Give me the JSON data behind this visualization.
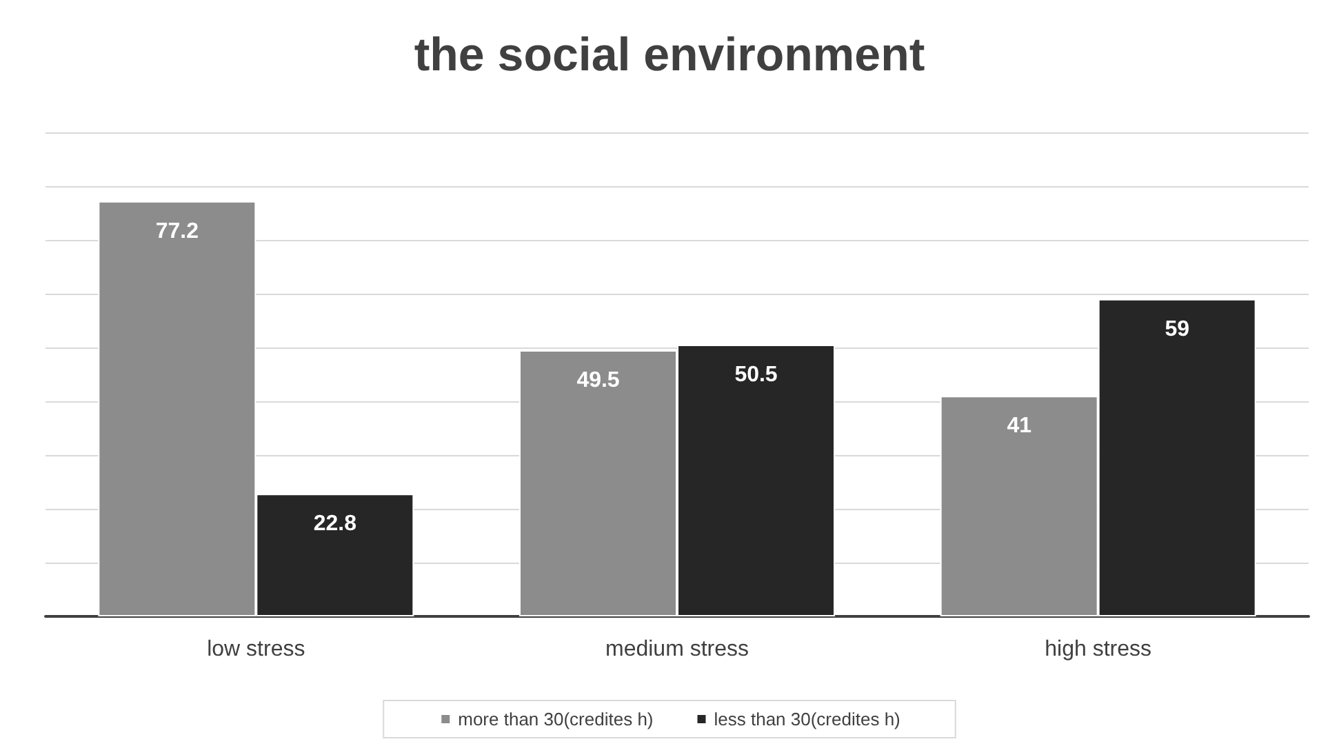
{
  "chart_data": {
    "type": "bar",
    "title": "the social environment",
    "categories": [
      "low stress",
      "medium stress",
      "high stress"
    ],
    "series": [
      {
        "name": "more than 30(credites h)",
        "color": "#8c8c8c",
        "values": [
          77.2,
          49.5,
          41
        ]
      },
      {
        "name": "less than 30(credites h)",
        "color": "#262626",
        "values": [
          22.8,
          50.5,
          59
        ]
      }
    ],
    "ylim": [
      0,
      90
    ],
    "yticks": [
      {
        "value": 0,
        "label": null
      },
      {
        "value": 10,
        "label": null
      },
      {
        "value": 20,
        "label": null
      },
      {
        "value": 30,
        "label": null
      },
      {
        "value": 40,
        "label": null
      },
      {
        "value": 50,
        "label": null
      },
      {
        "value": 60,
        "label": null
      },
      {
        "value": 70,
        "label": null
      },
      {
        "value": 80,
        "label": null
      },
      {
        "value": 90,
        "label": null
      }
    ],
    "tick_labels": "x",
    "grid": "y",
    "legend": "bottom",
    "data_labels": true
  }
}
